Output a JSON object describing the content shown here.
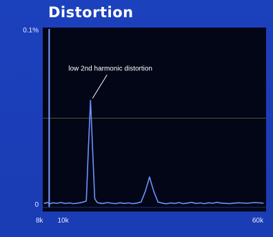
{
  "chart_data": {
    "type": "line",
    "title": "Distortion",
    "xlabel": "",
    "ylabel": "",
    "x_tick_labels": [
      "8k",
      "10k",
      "60k"
    ],
    "y_tick_labels": [
      "0.1%",
      "0"
    ],
    "ylim": [
      0,
      0.1
    ],
    "grid": true,
    "series": [
      {
        "x": [
          8000,
          8300,
          8600,
          9000,
          9500,
          10000,
          11000,
          12000,
          13000,
          14000,
          15000,
          16000,
          17000,
          18000,
          18500,
          19000,
          19500,
          20000,
          20500,
          21000,
          22000,
          23000,
          24000,
          25000,
          26000,
          27000,
          28000,
          29000,
          30000,
          31000,
          32000,
          33000,
          34000,
          35000,
          36000,
          37000,
          38000,
          39000,
          40000,
          41000,
          42000,
          43000,
          44000,
          45000,
          46000,
          47000,
          48000,
          49000,
          50000,
          52000,
          54000,
          56000,
          58000,
          60000
        ],
        "y": [
          0.0025,
          0.0022,
          0.0028,
          0.0024,
          0.0021,
          0.0026,
          0.0023,
          0.0027,
          0.0022,
          0.0025,
          0.0021,
          0.0024,
          0.0028,
          0.0035,
          0.033,
          0.06,
          0.033,
          0.005,
          0.003,
          0.0024,
          0.0022,
          0.0027,
          0.0023,
          0.0021,
          0.0026,
          0.0022,
          0.0025,
          0.0021,
          0.0024,
          0.003,
          0.009,
          0.017,
          0.009,
          0.003,
          0.0024,
          0.002,
          0.0025,
          0.0022,
          0.0027,
          0.0021,
          0.0024,
          0.0028,
          0.0022,
          0.0025,
          0.0021,
          0.0026,
          0.0023,
          0.0028,
          0.0024,
          0.0021,
          0.0026,
          0.0023,
          0.0027,
          0.0024
        ]
      }
    ],
    "annotations": [
      {
        "text": "low 2nd harmonic distortion",
        "x": 19000,
        "y": 0.06
      }
    ]
  },
  "colors": {
    "background": "#1c41bd",
    "plot_background": "#020617",
    "trace": "#6f94ff",
    "grid": "#4a5a2a",
    "text": "#ffffff"
  }
}
